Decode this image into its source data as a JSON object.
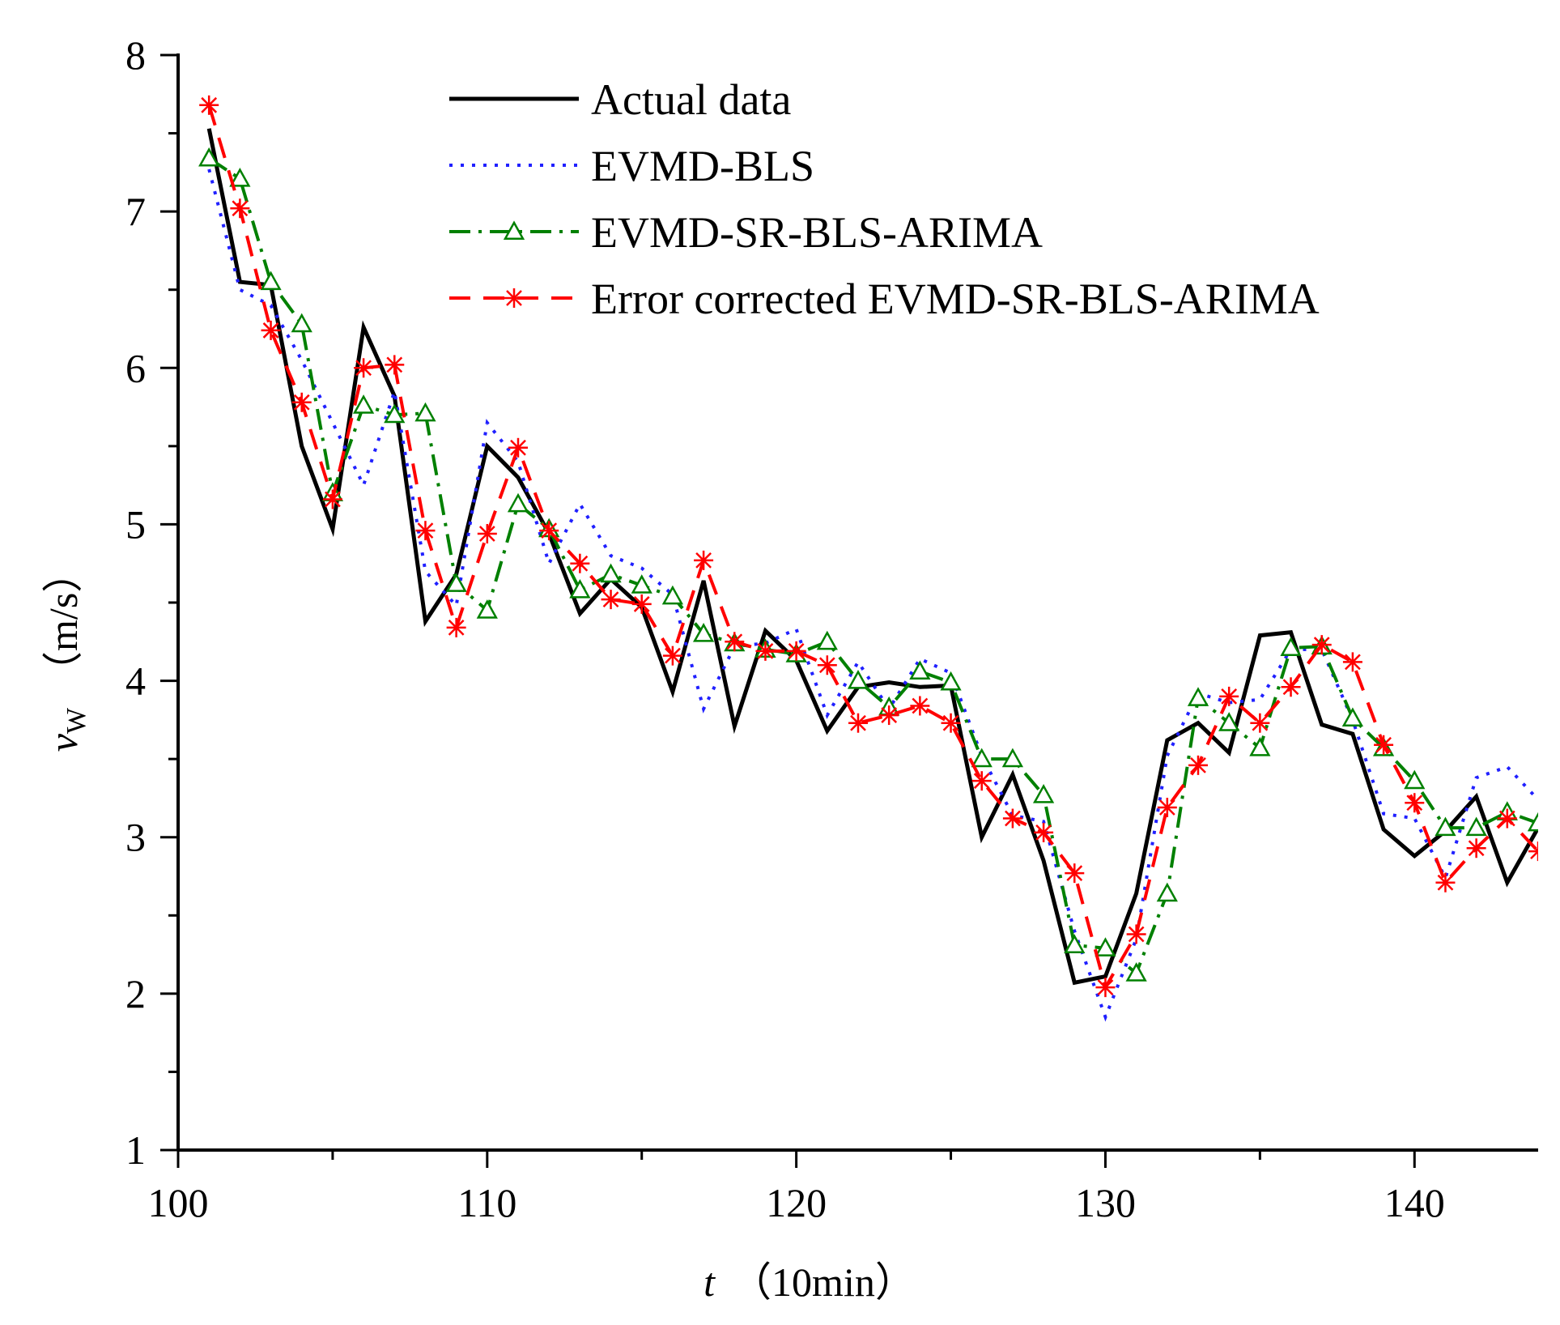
{
  "chart_data": {
    "type": "line",
    "title": "",
    "xlabel": {
      "var": "t",
      "unit": "（10min）"
    },
    "ylabel": {
      "var": "v",
      "sub": "W",
      "unit": "（m/s）"
    },
    "xlim": [
      100,
      144
    ],
    "ylim": [
      1,
      8
    ],
    "xticks": [
      100,
      110,
      120,
      130,
      140
    ],
    "yticks": [
      1,
      2,
      3,
      4,
      5,
      6,
      7,
      8
    ],
    "x": [
      101,
      102,
      103,
      104,
      105,
      106,
      107,
      108,
      109,
      110,
      111,
      112,
      113,
      114,
      115,
      116,
      117,
      118,
      119,
      120,
      121,
      122,
      123,
      124,
      125,
      126,
      127,
      128,
      129,
      130,
      131,
      132,
      133,
      134,
      135,
      136,
      137,
      138,
      139,
      140,
      141,
      142,
      143,
      144
    ],
    "series": [
      {
        "name": "Actual data",
        "color": "#000000",
        "style": "solid",
        "marker": "none",
        "values": [
          7.53,
          6.55,
          6.53,
          5.5,
          4.97,
          6.26,
          5.82,
          4.38,
          4.68,
          5.5,
          5.3,
          4.94,
          4.43,
          4.65,
          4.47,
          3.93,
          4.64,
          3.71,
          4.32,
          4.13,
          3.68,
          3.96,
          3.99,
          3.96,
          3.97,
          3.0,
          3.4,
          2.85,
          2.07,
          2.11,
          2.64,
          3.62,
          3.73,
          3.54,
          4.29,
          4.31,
          3.72,
          3.66,
          3.05,
          2.88,
          3.04,
          3.26,
          2.71,
          3.06
        ]
      },
      {
        "name": "EVMD-BLS",
        "color": "#2020ff",
        "style": "dotted",
        "marker": "none",
        "values": [
          7.27,
          6.5,
          6.4,
          6.05,
          5.65,
          5.25,
          5.85,
          4.7,
          4.48,
          5.65,
          5.4,
          4.75,
          5.13,
          4.8,
          4.72,
          4.55,
          3.82,
          4.22,
          4.24,
          4.33,
          3.78,
          4.12,
          3.82,
          4.14,
          4.05,
          3.52,
          3.14,
          3.1,
          2.4,
          1.85,
          2.35,
          3.52,
          3.92,
          3.86,
          3.88,
          4.2,
          4.2,
          3.75,
          3.15,
          3.12,
          2.74,
          3.38,
          3.45,
          3.24
        ]
      },
      {
        "name": "EVMD-SR-BLS-ARIMA",
        "color": "#008000",
        "style": "dashdot",
        "marker": "triangle",
        "values": [
          7.34,
          7.21,
          6.55,
          6.28,
          5.2,
          5.76,
          5.7,
          5.71,
          4.62,
          4.45,
          5.13,
          4.97,
          4.58,
          4.68,
          4.61,
          4.54,
          4.3,
          4.24,
          4.2,
          4.17,
          4.25,
          4.0,
          3.83,
          4.06,
          3.99,
          3.5,
          3.5,
          3.27,
          2.31,
          2.29,
          2.13,
          2.64,
          3.89,
          3.73,
          3.57,
          4.21,
          4.22,
          3.76,
          3.57,
          3.36,
          3.06,
          3.06,
          3.16,
          3.09
        ]
      },
      {
        "name": "Error corrected EVMD-SR-BLS-ARIMA",
        "color": "#ff0000",
        "style": "dashed",
        "marker": "asterisk",
        "values": [
          7.68,
          7.02,
          6.24,
          5.78,
          5.16,
          6.0,
          6.02,
          4.96,
          4.34,
          4.94,
          5.49,
          4.96,
          4.75,
          4.52,
          4.49,
          4.16,
          4.77,
          4.25,
          4.19,
          4.19,
          4.1,
          3.73,
          3.78,
          3.84,
          3.73,
          3.36,
          3.12,
          3.03,
          2.77,
          2.04,
          2.38,
          3.19,
          3.46,
          3.9,
          3.73,
          3.96,
          4.23,
          4.12,
          3.59,
          3.22,
          2.71,
          2.93,
          3.12,
          2.91
        ]
      }
    ],
    "legend": {
      "location": "top-right",
      "frame": false
    },
    "grid": false
  }
}
